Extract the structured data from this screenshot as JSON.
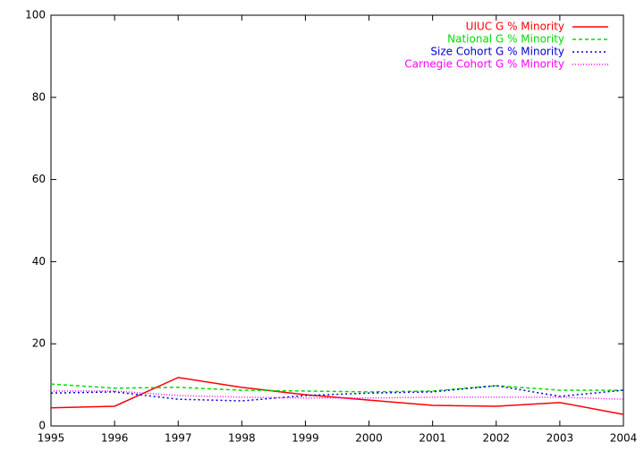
{
  "chart_data": {
    "type": "line",
    "x": [
      1995,
      1996,
      1997,
      1998,
      1999,
      2000,
      2001,
      2002,
      2003,
      2004
    ],
    "series": [
      {
        "name": "UIUC G % Minority",
        "color": "#ff0000",
        "dash": "none",
        "values": [
          4.4,
          4.8,
          11.8,
          9.4,
          7.6,
          6.3,
          5.0,
          4.8,
          5.7,
          2.8
        ]
      },
      {
        "name": "National G % Minority",
        "color": "#00dd00",
        "dash": "4,3",
        "values": [
          10.2,
          9.2,
          9.4,
          8.7,
          8.5,
          8.3,
          8.5,
          9.8,
          8.7,
          8.7
        ]
      },
      {
        "name": "Size Cohort G % Minority",
        "color": "#0000cc",
        "dash": "2,3",
        "values": [
          8.0,
          8.3,
          6.5,
          6.1,
          7.4,
          8.0,
          8.3,
          9.8,
          7.2,
          8.7
        ]
      },
      {
        "name": "Carnegie Cohort G % Minority",
        "color": "#ff00ff",
        "dash": "1,2",
        "values": [
          8.5,
          8.5,
          7.4,
          7.0,
          6.8,
          6.8,
          7.0,
          7.0,
          7.0,
          6.5
        ]
      }
    ],
    "xlim": [
      1995,
      2004
    ],
    "xticks": [
      1995,
      1996,
      1997,
      1998,
      1999,
      2000,
      2001,
      2002,
      2003,
      2004
    ],
    "ylim": [
      0,
      100
    ],
    "yticks": [
      0,
      20,
      40,
      60,
      80,
      100
    ],
    "legend": "top-right"
  }
}
